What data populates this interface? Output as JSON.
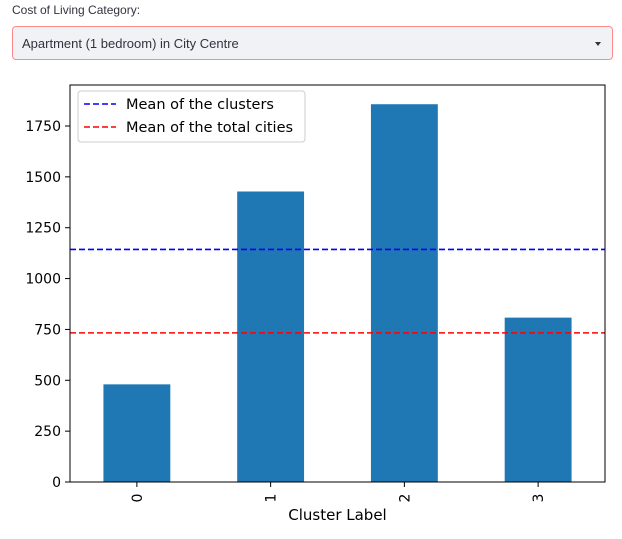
{
  "select": {
    "label": "Cost of Living Category:",
    "value": "Apartment (1 bedroom) in City Centre",
    "caret_icon": "chevron-down-icon"
  },
  "chart_data": {
    "type": "bar",
    "categories": [
      "0",
      "1",
      "2",
      "3"
    ],
    "values": [
      480,
      1428,
      1857,
      808
    ],
    "bar_color": "#1f77b4",
    "xlabel": "Cluster Label",
    "ylabel": "",
    "ylim": [
      0,
      1750
    ],
    "yticks": [
      "0",
      "250",
      "500",
      "750",
      "1000",
      "1250",
      "1500",
      "1750"
    ],
    "grid": false,
    "legend_position": "top-left",
    "reference_lines": [
      {
        "name": "Mean of the clusters",
        "value": 1143,
        "color": "#0000ff",
        "style": "dashed"
      },
      {
        "name": "Mean of the total cities",
        "value": 733,
        "color": "#ff0000",
        "style": "dashed"
      }
    ]
  }
}
